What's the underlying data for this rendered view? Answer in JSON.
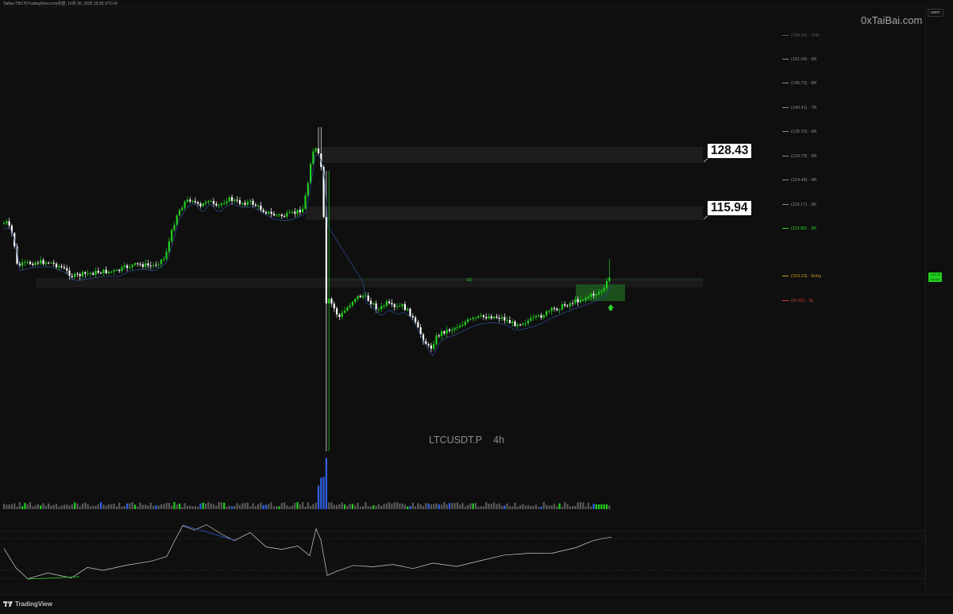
{
  "header": {
    "text": "TaiBai-TBC与TradingView.com共建,  10月 26, 2025 15:28 UTC+8"
  },
  "watermark": "0xTaiBai.com",
  "unit_badge": "USDT",
  "symbol": {
    "ticker": "LTCUSDT.P",
    "interval": "4h"
  },
  "brand": "TradingView",
  "callouts": {
    "upper": "128.43",
    "lower": "115.94"
  },
  "levels": [
    {
      "label": "(156.35) · 10R",
      "color": "#5a5a5a"
    },
    {
      "label": "(151.04) · 9R",
      "color": "#8a8a8a"
    },
    {
      "label": "(145.73) · 8R",
      "color": "#8a8a8a"
    },
    {
      "label": "(140.41) · 7R",
      "color": "#8a8a8a"
    },
    {
      "label": "(135.10) · 6R",
      "color": "#8a8a8a"
    },
    {
      "label": "(129.79) · 5R",
      "color": "#8a8a8a"
    },
    {
      "label": "(124.48) · 4R",
      "color": "#8a8a8a"
    },
    {
      "label": "(119.17) · 3R",
      "color": "#8a8a8a"
    },
    {
      "label": "(113.85) · 2R",
      "color": "#2bd42b"
    },
    {
      "label": "(103.23) · Entry",
      "color": "#c9a020"
    },
    {
      "label": "(97.92) · SL",
      "color": "#d43a3a"
    }
  ],
  "price_badge": {
    "line1": "103.78",
    "line2": "102.62",
    "color": "#22d11f"
  },
  "entry_label": "E0",
  "colors": {
    "up": "#22d11f",
    "down": "#ffffff",
    "volume_blue": "#2f62e6",
    "volume_gray": "#5a5a5a",
    "ma": "#2b4a8a",
    "rsi": "#cfcfcf"
  },
  "chart_data": {
    "type": "candlestick",
    "series": [
      {
        "name": "LTCUSDT.P",
        "interval": "4h"
      }
    ],
    "levels": [
      156.35,
      151.04,
      145.73,
      140.41,
      135.1,
      129.79,
      124.48,
      119.17,
      113.85,
      103.23,
      97.92
    ],
    "key_prices": [
      128.43,
      115.94
    ]
  }
}
